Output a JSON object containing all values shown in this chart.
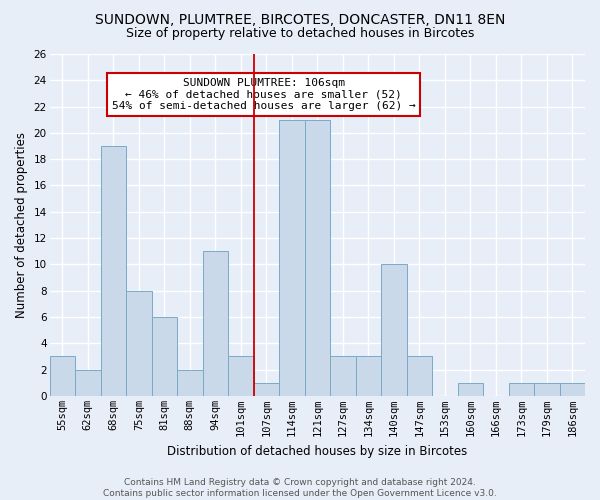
{
  "title1": "SUNDOWN, PLUMTREE, BIRCOTES, DONCASTER, DN11 8EN",
  "title2": "Size of property relative to detached houses in Bircotes",
  "xlabel": "Distribution of detached houses by size in Bircotes",
  "ylabel": "Number of detached properties",
  "categories": [
    "55sqm",
    "62sqm",
    "68sqm",
    "75sqm",
    "81sqm",
    "88sqm",
    "94sqm",
    "101sqm",
    "107sqm",
    "114sqm",
    "121sqm",
    "127sqm",
    "134sqm",
    "140sqm",
    "147sqm",
    "153sqm",
    "160sqm",
    "166sqm",
    "173sqm",
    "179sqm",
    "186sqm"
  ],
  "values": [
    3,
    2,
    19,
    8,
    6,
    2,
    11,
    3,
    1,
    21,
    21,
    3,
    3,
    10,
    3,
    0,
    1,
    0,
    1,
    1,
    1
  ],
  "bar_color": "#c9d9ea",
  "bar_edge_color": "#7aaac8",
  "reference_line_index": 7,
  "annotation_text": "SUNDOWN PLUMTREE: 106sqm\n← 46% of detached houses are smaller (52)\n54% of semi-detached houses are larger (62) →",
  "ylim": [
    0,
    26
  ],
  "yticks": [
    0,
    2,
    4,
    6,
    8,
    10,
    12,
    14,
    16,
    18,
    20,
    22,
    24,
    26
  ],
  "footnote": "Contains HM Land Registry data © Crown copyright and database right 2024.\nContains public sector information licensed under the Open Government Licence v3.0.",
  "background_color": "#e8eef8",
  "grid_color": "#ffffff",
  "title_fontsize": 10,
  "subtitle_fontsize": 9,
  "annotation_fontsize": 8,
  "ylabel_fontsize": 8.5,
  "xlabel_fontsize": 8.5,
  "footnote_fontsize": 6.5,
  "tick_fontsize": 7.5
}
